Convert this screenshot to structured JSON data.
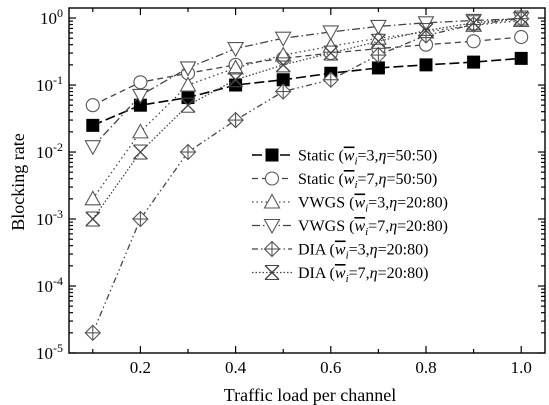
{
  "chart_data": {
    "type": "line",
    "title": "",
    "xlabel": "Traffic load per channel",
    "ylabel": "Blocking rate",
    "xlim": [
      0.05,
      1.05
    ],
    "ylim_log10": [
      -5,
      0.15
    ],
    "y_scale": "log",
    "x_ticks": [
      0.2,
      0.4,
      0.6,
      0.8,
      1.0
    ],
    "x_tick_labels": [
      "0.2",
      "0.4",
      "0.6",
      "0.8",
      "1.0"
    ],
    "y_ticks": [
      {
        "base": "10",
        "exp": "0",
        "value": 1
      },
      {
        "base": "10",
        "exp": "-1",
        "value": 0.1
      },
      {
        "base": "10",
        "exp": "-2",
        "value": 0.01
      },
      {
        "base": "10",
        "exp": "-3",
        "value": 0.001
      },
      {
        "base": "10",
        "exp": "-4",
        "value": 0.0001
      },
      {
        "base": "10",
        "exp": "-5",
        "value": 1e-05
      }
    ],
    "grid": false,
    "legend_position": "center-right",
    "x": [
      0.1,
      0.2,
      0.3,
      0.4,
      0.5,
      0.6,
      0.7,
      0.8,
      0.9,
      1.0
    ],
    "series": [
      {
        "name": "Static",
        "legend_param": {
          "w": "3",
          "eta": "50:50"
        },
        "marker": "square-filled",
        "dash": "long-dash",
        "values": [
          0.025,
          0.05,
          0.065,
          0.1,
          0.12,
          0.15,
          0.18,
          0.2,
          0.22,
          0.25
        ]
      },
      {
        "name": "Static",
        "legend_param": {
          "w": "7",
          "eta": "50:50"
        },
        "marker": "circle",
        "dash": "dash",
        "values": [
          0.05,
          0.11,
          0.15,
          0.2,
          0.25,
          0.3,
          0.35,
          0.4,
          0.45,
          0.52
        ]
      },
      {
        "name": "VWGS",
        "legend_param": {
          "w": "3",
          "eta": "20:80"
        },
        "marker": "triangle-up",
        "dash": "dot",
        "values": [
          0.002,
          0.02,
          0.1,
          0.18,
          0.28,
          0.38,
          0.5,
          0.62,
          0.78,
          0.92
        ]
      },
      {
        "name": "VWGS",
        "legend_param": {
          "w": "7",
          "eta": "20:80"
        },
        "marker": "triangle-down",
        "dash": "dash-dot",
        "values": [
          0.012,
          0.07,
          0.18,
          0.35,
          0.5,
          0.62,
          0.75,
          0.85,
          0.92,
          0.98
        ]
      },
      {
        "name": "DIA",
        "legend_param": {
          "w": "3",
          "eta": "20:80"
        },
        "marker": "diamond-plus",
        "dash": "dash-dot-dot",
        "values": [
          2e-05,
          0.001,
          0.01,
          0.03,
          0.08,
          0.12,
          0.28,
          0.55,
          0.8,
          0.98
        ]
      },
      {
        "name": "DIA",
        "legend_param": {
          "w": "7",
          "eta": "20:80"
        },
        "marker": "x-cross",
        "dash": "fine-dot",
        "values": [
          0.001,
          0.01,
          0.05,
          0.12,
          0.2,
          0.3,
          0.45,
          0.65,
          0.85,
          1.0
        ]
      }
    ]
  }
}
